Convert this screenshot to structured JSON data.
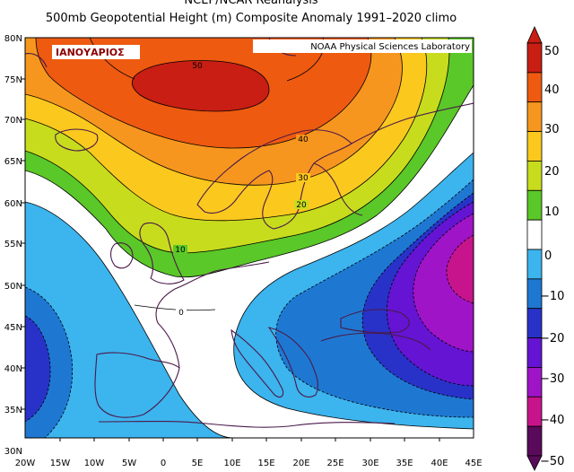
{
  "header": {
    "title": "NCEP/NCAR Reanalysis",
    "subtitle": "500mb Geopotential Height (m) Composite Anomaly 1991–2020 climo"
  },
  "map": {
    "month_label": "ΙΑΝΟΥΑΡΙΟΣ",
    "credit": "NOAA Physical Sciences Laboratory",
    "lat_labels": [
      "80N",
      "75N",
      "70N",
      "65N",
      "60N",
      "55N",
      "50N",
      "45N",
      "40N",
      "35N",
      "30N"
    ],
    "lon_labels": [
      "20W",
      "15W",
      "10W",
      "5W",
      "0",
      "5E",
      "10E",
      "15E",
      "20E",
      "25E",
      "30E",
      "35E",
      "40E",
      "45E"
    ],
    "contour_labels": [
      "50",
      "40",
      "30",
      "20",
      "10",
      "0"
    ]
  },
  "colorbar": {
    "labels": [
      "50",
      "40",
      "30",
      "20",
      "10",
      "0",
      "−10",
      "−20",
      "−30",
      "−40",
      "−50"
    ],
    "colors": [
      "#c81e14",
      "#ee5a10",
      "#f7961e",
      "#fbc81e",
      "#c8dc1e",
      "#5ac828",
      "#ffffff",
      "#3cb4ee",
      "#1e78d2",
      "#2832c8",
      "#6414d2",
      "#a014c8",
      "#c8148c",
      "#5a0a5a"
    ]
  },
  "anomaly_colors": {
    "pos50": "#c81e14",
    "pos40": "#ee5a10",
    "pos30": "#f7961e",
    "pos20": "#fbc81e",
    "pos10": "#c8dc1e",
    "pos0": "#5ac828",
    "zero": "#ffffff",
    "neg10": "#3cb4ee",
    "neg20": "#1e78d2",
    "neg30": "#2832c8",
    "neg40": "#6414d2",
    "neg50": "#a014c8",
    "neg60": "#c8148c"
  }
}
